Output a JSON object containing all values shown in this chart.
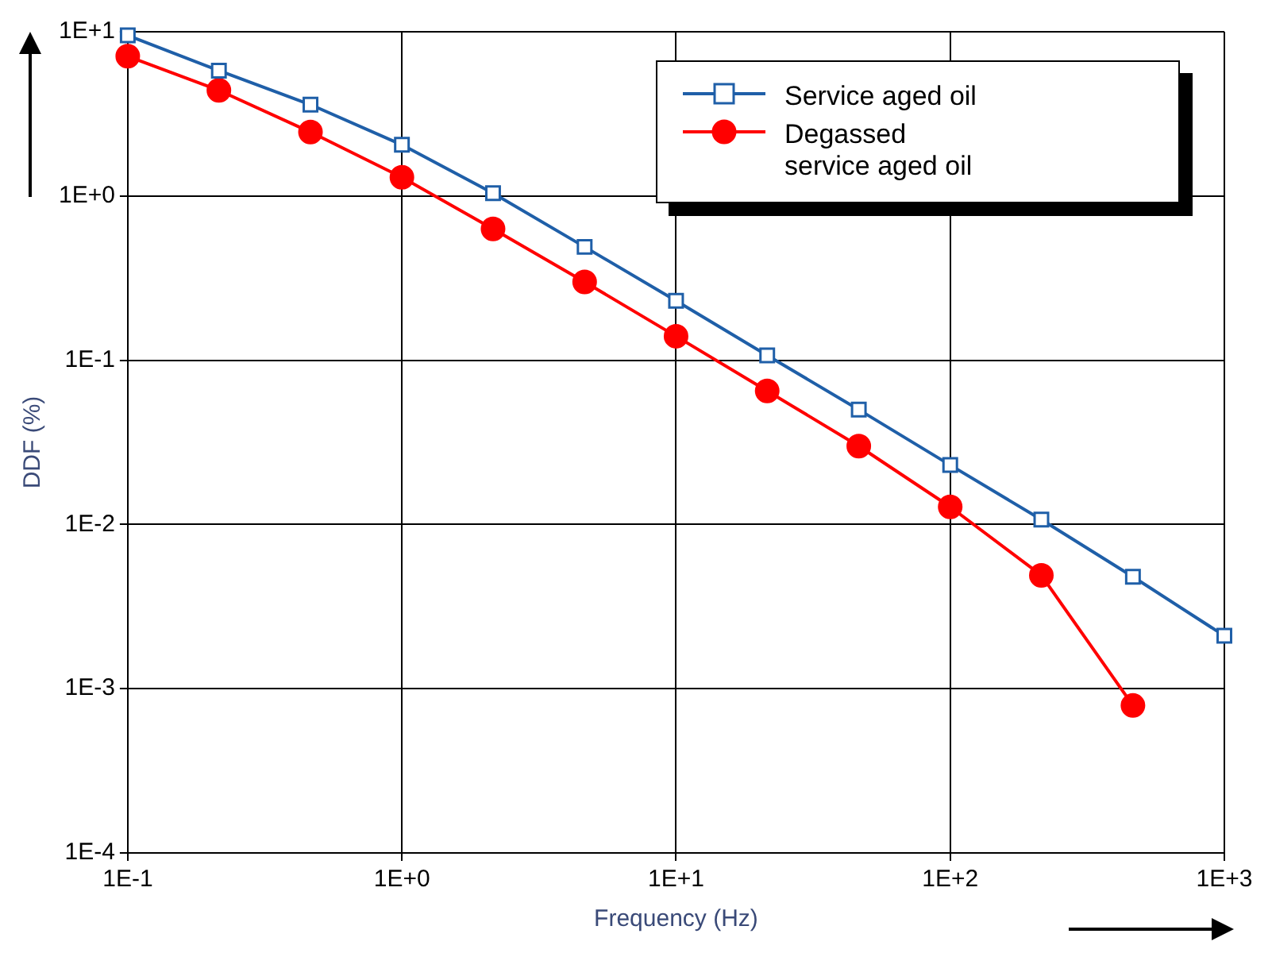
{
  "chart_data": {
    "type": "line",
    "xlabel": "Frequency (Hz)",
    "ylabel": "DDF (%)",
    "log": "xy",
    "grid": true,
    "legend": "top right",
    "x": [
      0.1,
      0.215,
      0.464,
      1,
      2.15,
      4.64,
      10,
      21.5,
      46.4,
      100,
      215,
      464,
      1000
    ],
    "xlim": [
      0.1,
      1000
    ],
    "xticks": [
      {
        "value": 0.1,
        "label": "1E-1"
      },
      {
        "value": 1,
        "label": "1E+0"
      },
      {
        "value": 10,
        "label": "1E+1"
      },
      {
        "value": 100,
        "label": "1E+2"
      },
      {
        "value": 1000,
        "label": "1E+3"
      }
    ],
    "ylim": [
      0.0001,
      10
    ],
    "yticks": [
      {
        "value": 0.0001,
        "label": "1E-4"
      },
      {
        "value": 0.001,
        "label": "1E-3"
      },
      {
        "value": 0.01,
        "label": "1E-2"
      },
      {
        "value": 0.1,
        "label": "1E-1"
      },
      {
        "value": 1,
        "label": "1E+0"
      },
      {
        "value": 10,
        "label": "1E+1"
      }
    ],
    "series": [
      {
        "name": "Service aged oil",
        "color": "#1f5fa8",
        "marker": "square",
        "values": [
          9.5,
          5.8,
          3.6,
          2.05,
          1.04,
          0.49,
          0.23,
          0.107,
          0.05,
          0.023,
          0.0107,
          0.0048,
          0.0021
        ]
      },
      {
        "name": "Degassed service aged oil",
        "color": "#ff0000",
        "marker": "circle",
        "values": [
          7.1,
          4.4,
          2.45,
          1.3,
          0.63,
          0.3,
          0.14,
          0.065,
          0.03,
          0.0128,
          0.0049,
          0.00079,
          null
        ]
      }
    ]
  }
}
